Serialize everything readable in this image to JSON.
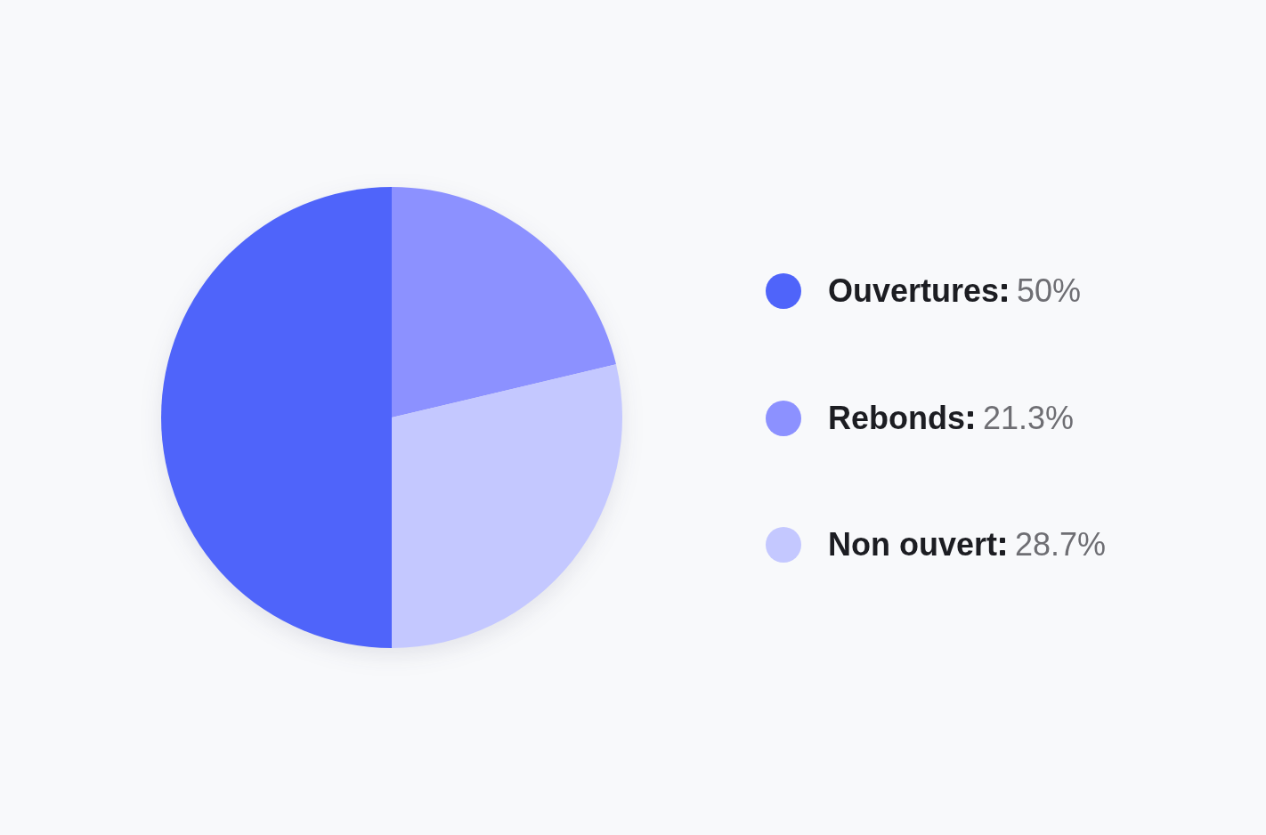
{
  "chart_data": {
    "type": "pie",
    "categories": [
      "Ouvertures",
      "Rebonds",
      "Non ouvert"
    ],
    "values": [
      50,
      21.3,
      28.7
    ],
    "value_labels": [
      "50%",
      "21.3%",
      "28.7%"
    ],
    "colors": [
      "#4f64fa",
      "#8c91ff",
      "#c4c8ff"
    ],
    "legend": "right"
  }
}
